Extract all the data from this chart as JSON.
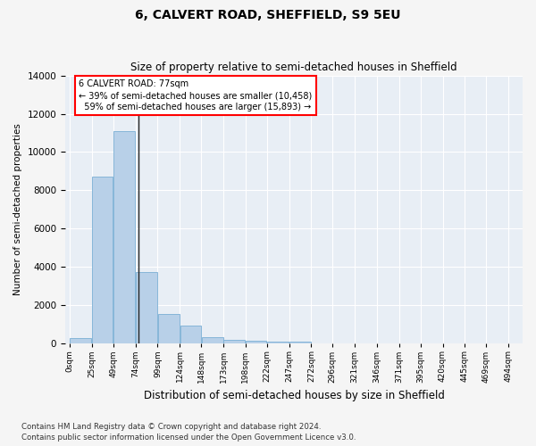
{
  "title": "6, CALVERT ROAD, SHEFFIELD, S9 5EU",
  "subtitle": "Size of property relative to semi-detached houses in Sheffield",
  "xlabel": "Distribution of semi-detached houses by size in Sheffield",
  "ylabel": "Number of semi-detached properties",
  "bar_color": "#b8d0e8",
  "bar_edge_color": "#7aafd4",
  "annotation_text": "6 CALVERT ROAD: 77sqm\n← 39% of semi-detached houses are smaller (10,458)\n  59% of semi-detached houses are larger (15,893) →",
  "bin_edges": [
    0,
    25,
    49,
    74,
    99,
    124,
    148,
    173,
    198,
    222,
    247,
    272,
    296,
    321,
    346,
    371,
    395,
    420,
    445,
    469,
    494
  ],
  "values": [
    300,
    8700,
    11100,
    3750,
    1550,
    950,
    350,
    200,
    150,
    100,
    100,
    0,
    0,
    0,
    0,
    0,
    0,
    0,
    0,
    0
  ],
  "ylim": [
    0,
    14000
  ],
  "yticks": [
    0,
    2000,
    4000,
    6000,
    8000,
    10000,
    12000,
    14000
  ],
  "vline_x": 77,
  "background_color": "#e8eef5",
  "grid_color": "#ffffff",
  "footnote": "Contains HM Land Registry data © Crown copyright and database right 2024.\nContains public sector information licensed under the Open Government Licence v3.0."
}
